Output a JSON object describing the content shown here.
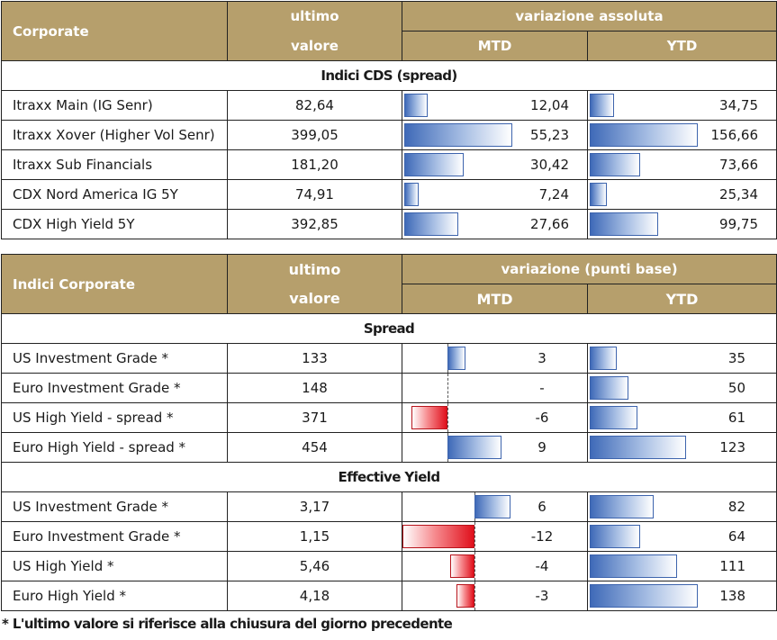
{
  "cds_table": {
    "header": {
      "col1": "Corporate",
      "col2_top": "ultimo",
      "col2_bottom": "valore",
      "group": "variazione assoluta",
      "mtd": "MTD",
      "ytd": "YTD"
    },
    "section": "Indici CDS (spread)",
    "rows": [
      {
        "name": "Itraxx Main (IG Senr)",
        "value": "82,64",
        "mtd": "12,04",
        "ytd": "34,75",
        "mtd_num": 12.04,
        "ytd_num": 34.75
      },
      {
        "name": "Itraxx Xover (Higher Vol Senr)",
        "value": "399,05",
        "mtd": "55,23",
        "ytd": "156,66",
        "mtd_num": 55.23,
        "ytd_num": 156.66
      },
      {
        "name": "Itraxx Sub Financials",
        "value": "181,20",
        "mtd": "30,42",
        "ytd": "73,66",
        "mtd_num": 30.42,
        "ytd_num": 73.66
      },
      {
        "name": "CDX Nord America IG 5Y",
        "value": "74,91",
        "mtd": "7,24",
        "ytd": "25,34",
        "mtd_num": 7.24,
        "ytd_num": 25.34
      },
      {
        "name": "CDX High Yield 5Y",
        "value": "392,85",
        "mtd": "27,66",
        "ytd": "99,75",
        "mtd_num": 27.66,
        "ytd_num": 99.75
      }
    ]
  },
  "corp_table": {
    "header": {
      "col1": "Indici Corporate",
      "col2_top": "ultimo",
      "col2_bottom": "valore",
      "group": "variazione (punti base)",
      "mtd": "MTD",
      "ytd": "YTD"
    },
    "sections": [
      {
        "title": "Spread",
        "rows": [
          {
            "name": "US Investment Grade *",
            "value": "133",
            "mtd": "3",
            "ytd": "35",
            "mtd_num": 3,
            "ytd_num": 35
          },
          {
            "name": "Euro Investment Grade *",
            "value": "148",
            "mtd": "-",
            "ytd": "50",
            "mtd_num": 0,
            "ytd_num": 50
          },
          {
            "name": "US High Yield  - spread *",
            "value": "371",
            "mtd": "-6",
            "ytd": "61",
            "mtd_num": -6,
            "ytd_num": 61
          },
          {
            "name": "Euro High Yield  - spread *",
            "value": "454",
            "mtd": "9",
            "ytd": "123",
            "mtd_num": 9,
            "ytd_num": 123
          }
        ]
      },
      {
        "title": "Effective Yield",
        "rows": [
          {
            "name": "US Investment Grade *",
            "value": "3,17",
            "mtd": "6",
            "ytd": "82",
            "mtd_num": 6,
            "ytd_num": 82
          },
          {
            "name": "Euro Investment Grade *",
            "value": "1,15",
            "mtd": "-12",
            "ytd": "64",
            "mtd_num": -12,
            "ytd_num": 64
          },
          {
            "name": "US High Yield *",
            "value": "5,46",
            "mtd": "-4",
            "ytd": "111",
            "mtd_num": -4,
            "ytd_num": 111
          },
          {
            "name": "Euro High Yield *",
            "value": "4,18",
            "mtd": "-3",
            "ytd": "138",
            "mtd_num": -3,
            "ytd_num": 138
          }
        ]
      }
    ]
  },
  "footnote": "* L'ultimo valore si riferisce alla chiusura del giorno precedente",
  "colors": {
    "header_bg": "#b69f6c",
    "positive_bar": "#3f6ab8",
    "negative_bar": "#e0101c"
  }
}
